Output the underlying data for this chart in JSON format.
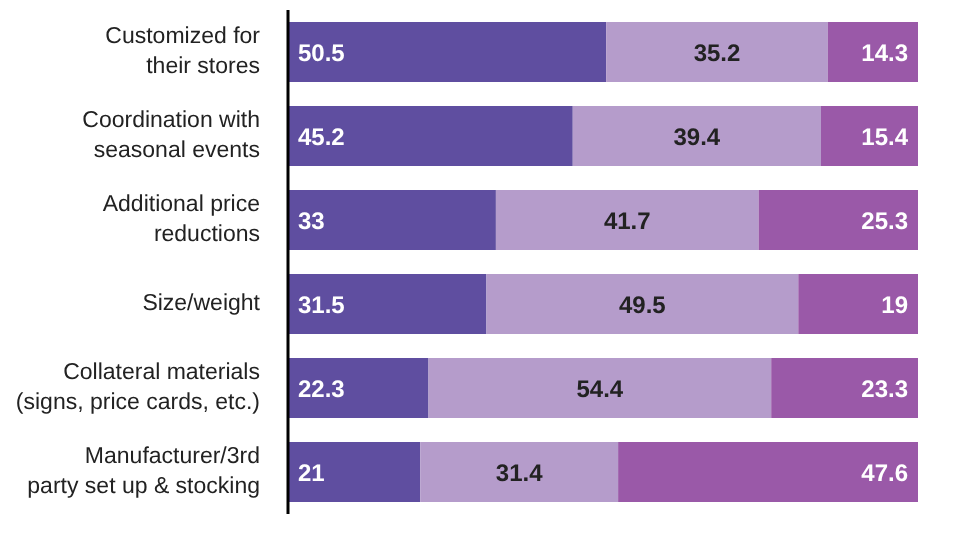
{
  "chart_data": {
    "type": "bar",
    "orientation": "horizontal",
    "stacked": true,
    "categories": [
      "Customized for\ntheir stores",
      "Coordination with\nseasonal events",
      "Additional price\nreductions",
      "Size/weight",
      "Collateral materials\n(signs, price cards, etc.)",
      "Manufacturer/3rd\nparty set up & stocking"
    ],
    "series": [
      {
        "color": "#5f4ea0",
        "values": [
          50.5,
          45.2,
          33,
          31.5,
          22.3,
          21
        ]
      },
      {
        "color": "#b59ccb",
        "values": [
          35.2,
          39.4,
          41.7,
          49.5,
          54.4,
          31.4
        ]
      },
      {
        "color": "#9a59a8",
        "values": [
          14.3,
          15.4,
          25.3,
          19,
          23.3,
          47.6
        ]
      }
    ],
    "xlim": [
      0,
      100
    ],
    "data_labels": true,
    "tick_labels": "y",
    "grid": false,
    "legend": false
  }
}
